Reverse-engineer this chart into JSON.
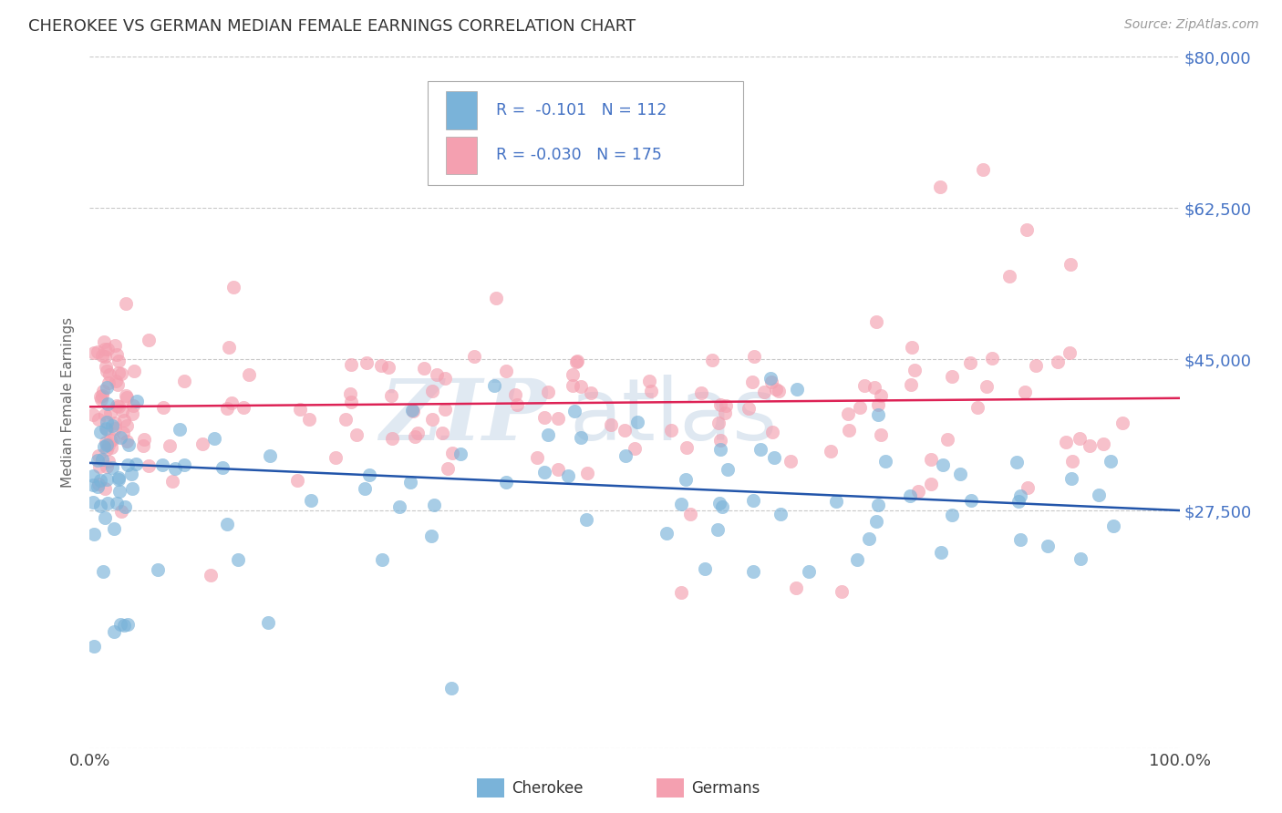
{
  "title": "CHEROKEE VS GERMAN MEDIAN FEMALE EARNINGS CORRELATION CHART",
  "source": "Source: ZipAtlas.com",
  "ylabel": "Median Female Earnings",
  "xlim": [
    0,
    1
  ],
  "ylim": [
    0,
    80000
  ],
  "yticks": [
    0,
    27500,
    45000,
    62500,
    80000
  ],
  "ytick_labels": [
    "",
    "$27,500",
    "$45,000",
    "$62,500",
    "$80,000"
  ],
  "xtick_labels": [
    "0.0%",
    "100.0%"
  ],
  "cherokee_color": "#7ab3d9",
  "german_color": "#f4a0b0",
  "cherokee_line_color": "#2255aa",
  "german_line_color": "#dd2255",
  "cherokee_R": -0.101,
  "cherokee_N": 112,
  "german_R": -0.03,
  "german_N": 175,
  "legend_label1": "Cherokee",
  "legend_label2": "Germans",
  "watermark_zip": "ZIP",
  "watermark_atlas": "atlas",
  "background_color": "#ffffff",
  "grid_color": "#bbbbbb",
  "title_color": "#333333",
  "label_color": "#4472c4",
  "cherokee_line_y0": 33000,
  "cherokee_line_y1": 27500,
  "german_line_y0": 39500,
  "german_line_y1": 40500
}
